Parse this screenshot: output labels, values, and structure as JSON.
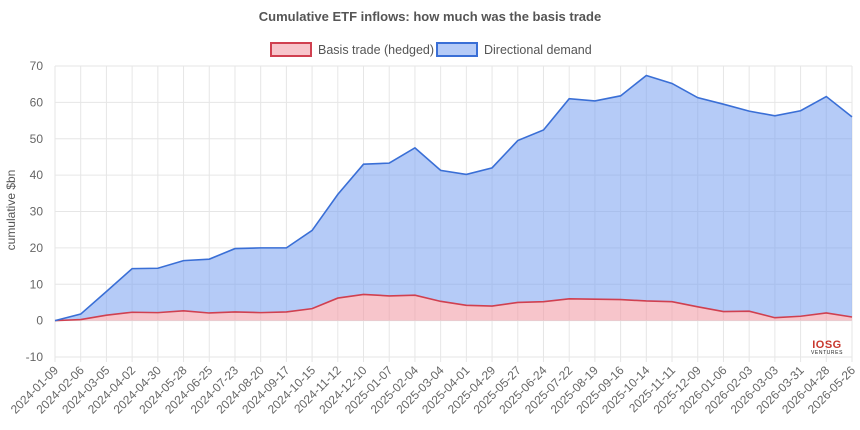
{
  "chart_data": {
    "type": "area",
    "title": "Cumulative ETF inflows: how much was the basis trade",
    "ylabel": "cumulative $bn",
    "xlabel": "",
    "ylim": [
      -10,
      70
    ],
    "yticks": [
      -10,
      0,
      10,
      20,
      30,
      40,
      50,
      60,
      70
    ],
    "grid": true,
    "legend_position": "top-center",
    "watermark": "10SG VENTURES",
    "x": [
      "2024-01-09",
      "2024-02-06",
      "2024-03-05",
      "2024-04-02",
      "2024-04-30",
      "2024-05-28",
      "2024-06-25",
      "2024-07-23",
      "2024-08-20",
      "2024-09-17",
      "2024-10-15",
      "2024-11-12",
      "2024-12-10",
      "2025-01-07",
      "2025-02-04",
      "2025-03-04",
      "2025-04-01",
      "2025-04-29",
      "2025-05-27",
      "2025-06-24",
      "2025-07-22",
      "2025-08-19",
      "2025-09-16",
      "2025-10-14",
      "2025-11-11",
      "2025-12-09",
      "2026-01-06",
      "2026-02-03",
      "2026-03-03",
      "2026-03-31",
      "2026-04-28",
      "2026-05-26"
    ],
    "series": [
      {
        "name": "Basis trade (hedged)",
        "color": "#d04050",
        "fill": "rgba(240,150,160,0.55)",
        "values": [
          0,
          0.3,
          1.5,
          2.3,
          2.2,
          2.7,
          2.1,
          2.4,
          2.2,
          2.4,
          3.3,
          6.2,
          7.2,
          6.8,
          7.0,
          5.3,
          4.2,
          4.0,
          5.0,
          5.2,
          6.0,
          5.9,
          5.8,
          5.4,
          5.2,
          3.8,
          2.5,
          2.6,
          0.8,
          1.2,
          2.1,
          1.0
        ]
      },
      {
        "name": "Directional demand",
        "color": "#3a6fd6",
        "fill": "rgba(120,160,240,0.55)",
        "values": [
          0,
          1.5,
          6.5,
          12.0,
          12.2,
          13.8,
          14.8,
          17.4,
          17.8,
          17.6,
          21.5,
          28.5,
          35.8,
          36.5,
          40.5,
          36.0,
          36.0,
          38.0,
          44.5,
          47.2,
          55.0,
          54.5,
          56.0,
          62.0,
          60.0,
          57.5,
          57.0,
          55.0,
          55.5,
          56.5,
          59.5,
          55.0
        ]
      }
    ]
  }
}
